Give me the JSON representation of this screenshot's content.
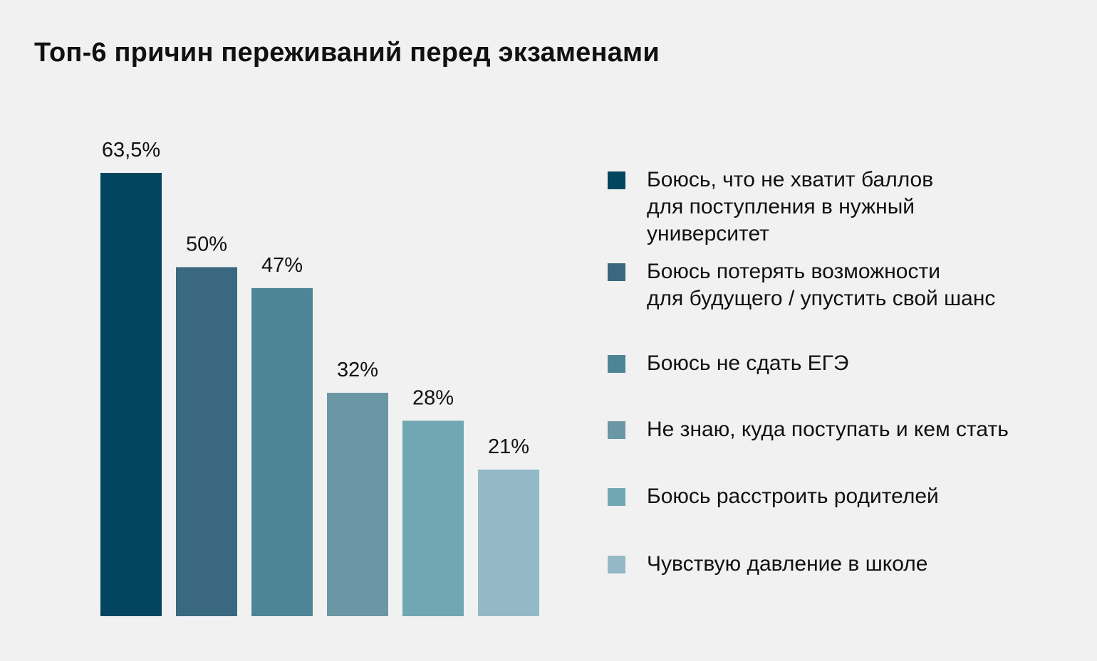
{
  "chart_data": {
    "type": "bar",
    "title": "Топ-6 причин переживаний перед экзаменами",
    "unit": "%",
    "categories": [
      "Боюсь, что не хватит баллов для поступления в нужный университет",
      "Боюсь потерять возможности для будущего / упустить свой шанс",
      "Боюсь не сдать ЕГЭ",
      "Не знаю, куда поступать и кем стать",
      "Боюсь расстроить родителей",
      "Чувствую давление в школе"
    ],
    "values": [
      63.5,
      50,
      47,
      32,
      28,
      21
    ],
    "value_labels": [
      "63,5%",
      "50%",
      "47%",
      "32%",
      "28%",
      "21%"
    ],
    "colors": [
      "#03445f",
      "#3a687f",
      "#4d8597",
      "#6a97a3",
      "#71a7b3",
      "#93b9c6"
    ],
    "ylim": [
      0,
      63.5
    ],
    "grid": false,
    "legend_position": "right",
    "legend": [
      {
        "label": "Боюсь, что не хватит баллов\nдля поступления в нужный\nуниверситет",
        "color": "#03445f"
      },
      {
        "label": "Боюсь потерять возможности\nдля будущего / упустить свой шанс",
        "color": "#3a687f"
      },
      {
        "label": "Боюсь не сдать ЕГЭ",
        "color": "#4d8597"
      },
      {
        "label": "Не знаю, куда поступать и кем стать",
        "color": "#6a97a3"
      },
      {
        "label": "Боюсь расстроить родителей",
        "color": "#71a7b3"
      },
      {
        "label": "Чувствую давление в школе",
        "color": "#93b9c6"
      }
    ]
  }
}
